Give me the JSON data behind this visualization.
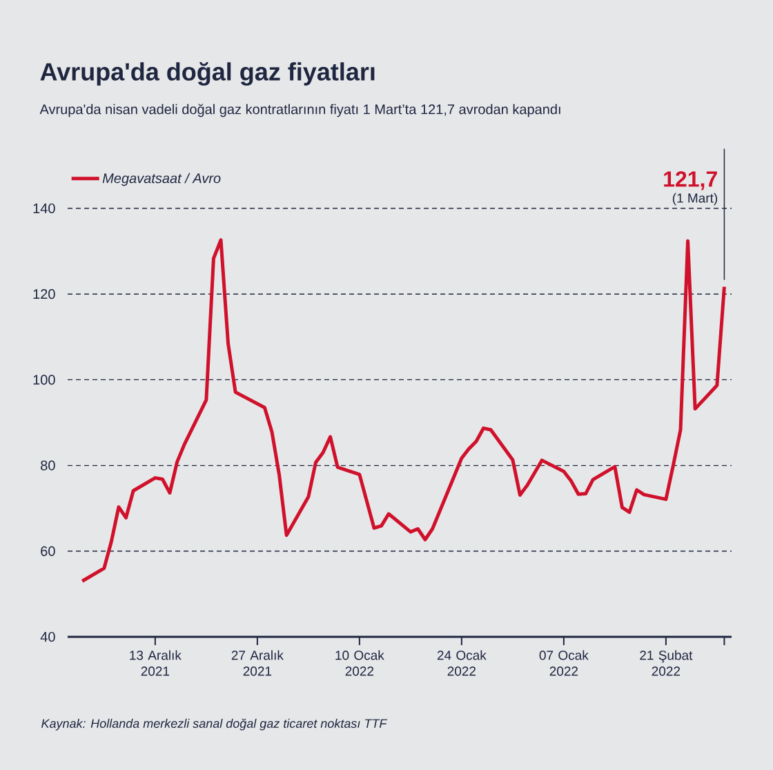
{
  "chart_data": {
    "type": "line",
    "title": "Avrupa'da doğal gaz fiyatları",
    "subtitle": "Avrupa'da nisan vadeli doğal gaz kontratlarının fiyatı 1 Mart’ta 121,7 avrodan kapandı",
    "x": [
      "2021-12-03",
      "2021-12-06",
      "2021-12-07",
      "2021-12-08",
      "2021-12-09",
      "2021-12-10",
      "2021-12-13",
      "2021-12-14",
      "2021-12-15",
      "2021-12-16",
      "2021-12-17",
      "2021-12-20",
      "2021-12-21",
      "2021-12-22",
      "2021-12-23",
      "2021-12-24",
      "2021-12-28",
      "2021-12-29",
      "2021-12-30",
      "2021-12-31",
      "2022-01-03",
      "2022-01-04",
      "2022-01-05",
      "2022-01-06",
      "2022-01-07",
      "2022-01-10",
      "2022-01-12",
      "2022-01-13",
      "2022-01-14",
      "2022-01-17",
      "2022-01-18",
      "2022-01-19",
      "2022-01-20",
      "2022-01-24",
      "2022-01-25",
      "2022-01-26",
      "2022-01-27",
      "2022-01-28",
      "2022-01-31",
      "2022-02-01",
      "2022-02-02",
      "2022-02-04",
      "2022-02-07",
      "2022-02-08",
      "2022-02-09",
      "2022-02-10",
      "2022-02-11",
      "2022-02-14",
      "2022-02-15",
      "2022-02-16",
      "2022-02-17",
      "2022-02-18",
      "2022-02-21",
      "2022-02-22",
      "2022-02-23",
      "2022-02-24",
      "2022-02-25",
      "2022-02-28",
      "2022-03-01"
    ],
    "series": [
      {
        "name": "Megavatsaat / Avro",
        "color": "#d0112b",
        "values": [
          53.0,
          56.0,
          62.3,
          70.3,
          67.8,
          74.1,
          77.1,
          76.8,
          73.6,
          80.8,
          84.9,
          95.3,
          128.3,
          132.6,
          108.4,
          97.1,
          93.5,
          87.8,
          77.8,
          63.7,
          72.7,
          80.7,
          83.0,
          86.7,
          79.6,
          77.9,
          65.4,
          65.9,
          68.7,
          64.5,
          65.2,
          62.7,
          65.2,
          81.7,
          83.9,
          85.6,
          88.7,
          88.3,
          81.3,
          73.1,
          75.4,
          81.2,
          78.6,
          76.4,
          73.3,
          73.4,
          76.7,
          79.7,
          70.2,
          69.1,
          74.3,
          73.2,
          72.1,
          80.0,
          88.3,
          132.4,
          93.2,
          98.7,
          121.7
        ]
      }
    ],
    "xlim": [
      "2021-12-01",
      "2022-03-02"
    ],
    "xticks": [
      {
        "value": "2021-12-13",
        "label": "13 Aralık 2021"
      },
      {
        "value": "2021-12-27",
        "label": "27 Aralık 2021"
      },
      {
        "value": "2022-01-10",
        "label": "10 Ocak 2022"
      },
      {
        "value": "2022-01-24",
        "label": "24 Ocak 2022"
      },
      {
        "value": "2022-02-07",
        "label": "07 Ocak 2022"
      },
      {
        "value": "2022-02-21",
        "label": "21 Şubat 2022"
      },
      {
        "value": "2022-03-01",
        "label": null
      }
    ],
    "ylim": [
      40,
      140
    ],
    "yticks": [
      40,
      60,
      80,
      100,
      120,
      140
    ],
    "grid": "y",
    "legend": "top left",
    "marker": "none",
    "line_style": "solid",
    "annotations": [
      "121,7",
      "(1 Mart)",
      "Kaynak: Hollanda merkezli sanal doğal gaz ticaret noktası TTF"
    ]
  }
}
